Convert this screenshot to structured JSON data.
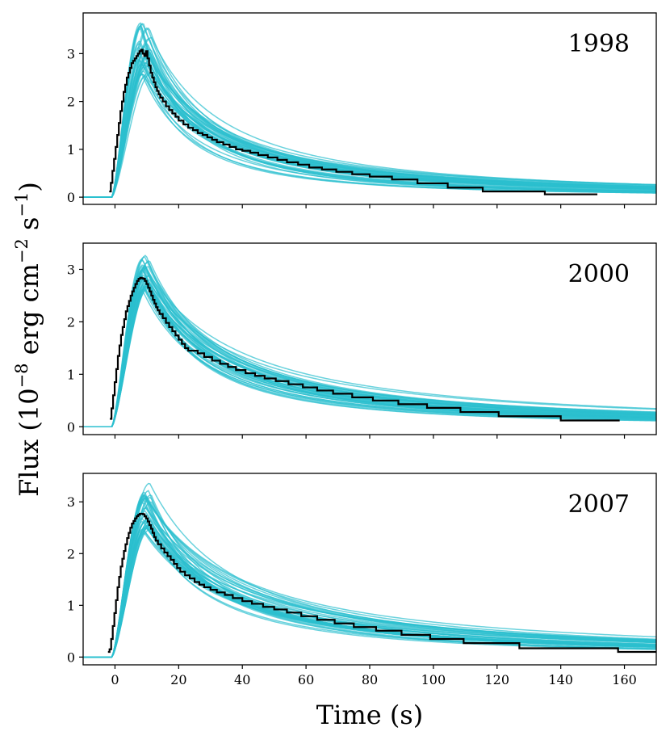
{
  "chart_data": {
    "type": "line",
    "xlabel": "Time (s)",
    "ylabel": {
      "prefix": "Flux (10",
      "exp1": "−8",
      "mid": " erg cm",
      "exp2": "−2",
      "mid2": " s",
      "exp3": "−1",
      "suffix": ")"
    },
    "xlim": [
      -10,
      170
    ],
    "xticks": [
      0,
      20,
      40,
      60,
      80,
      100,
      120,
      140,
      160
    ],
    "colors": {
      "model": "#2bbfcf",
      "observed": "#000000"
    },
    "panels": [
      {
        "label": "1998",
        "ylim": [
          -0.15,
          3.85
        ],
        "yticks": [
          0,
          1,
          2,
          3
        ],
        "model_curves": {
          "count": 40,
          "onset": -1,
          "peak_time": [
            7.5,
            11.5
          ],
          "peak_flux": [
            2.5,
            3.65
          ],
          "tail_scale": [
            22,
            38
          ],
          "tail_index": [
            1.35,
            1.8
          ]
        },
        "observed_steps": [
          [
            -1.8,
            0.12
          ],
          [
            -1.3,
            0.3
          ],
          [
            -0.8,
            0.55
          ],
          [
            -0.3,
            0.8
          ],
          [
            0.2,
            1.05
          ],
          [
            0.7,
            1.3
          ],
          [
            1.2,
            1.55
          ],
          [
            1.7,
            1.8
          ],
          [
            2.2,
            2.0
          ],
          [
            2.7,
            2.2
          ],
          [
            3.2,
            2.35
          ],
          [
            3.7,
            2.5
          ],
          [
            4.2,
            2.6
          ],
          [
            4.7,
            2.7
          ],
          [
            5.2,
            2.8
          ],
          [
            5.7,
            2.85
          ],
          [
            6.2,
            2.9
          ],
          [
            6.7,
            2.95
          ],
          [
            7.2,
            3.0
          ],
          [
            7.7,
            3.05
          ],
          [
            8.2,
            3.08
          ],
          [
            8.7,
            3.0
          ],
          [
            9.2,
            2.95
          ],
          [
            9.7,
            3.05
          ],
          [
            10.2,
            2.9
          ],
          [
            10.7,
            2.75
          ],
          [
            11.2,
            2.6
          ],
          [
            11.7,
            2.5
          ],
          [
            12.2,
            2.4
          ],
          [
            12.7,
            2.3
          ],
          [
            13.2,
            2.22
          ],
          [
            13.7,
            2.15
          ],
          [
            14.2,
            2.08
          ],
          [
            15.0,
            2.0
          ],
          [
            16.0,
            1.9
          ],
          [
            17.0,
            1.82
          ],
          [
            18.0,
            1.75
          ],
          [
            19.0,
            1.68
          ],
          [
            20.0,
            1.6
          ],
          [
            21.5,
            1.52
          ],
          [
            23.0,
            1.45
          ],
          [
            24.5,
            1.4
          ],
          [
            26.0,
            1.34
          ],
          [
            27.5,
            1.3
          ],
          [
            29.0,
            1.25
          ],
          [
            30.5,
            1.2
          ],
          [
            32.0,
            1.15
          ],
          [
            34.0,
            1.1
          ],
          [
            36.0,
            1.05
          ],
          [
            38.0,
            1.0
          ],
          [
            40.0,
            0.97
          ],
          [
            42.5,
            0.93
          ],
          [
            45.0,
            0.88
          ],
          [
            48.0,
            0.83
          ],
          [
            51.0,
            0.78
          ],
          [
            54.0,
            0.73
          ],
          [
            57.5,
            0.68
          ],
          [
            61.0,
            0.62
          ],
          [
            65.0,
            0.58
          ],
          [
            69.5,
            0.53
          ],
          [
            74.5,
            0.48
          ],
          [
            80.0,
            0.43
          ],
          [
            87.0,
            0.37
          ],
          [
            95.0,
            0.29
          ],
          [
            104.5,
            0.2
          ],
          [
            115.5,
            0.12
          ],
          [
            135.0,
            0.06
          ],
          [
            151.5,
            0.06
          ]
        ]
      },
      {
        "label": "2000",
        "ylim": [
          -0.15,
          3.5
        ],
        "yticks": [
          0,
          1,
          2,
          3
        ],
        "model_curves": {
          "count": 40,
          "onset": -1,
          "peak_time": [
            8.5,
            11
          ],
          "peak_flux": [
            2.6,
            3.3
          ],
          "tail_scale": [
            25,
            42
          ],
          "tail_index": [
            1.3,
            1.7
          ]
        },
        "observed_steps": [
          [
            -1.6,
            0.15
          ],
          [
            -1.1,
            0.35
          ],
          [
            -0.6,
            0.6
          ],
          [
            -0.1,
            0.85
          ],
          [
            0.4,
            1.1
          ],
          [
            0.9,
            1.35
          ],
          [
            1.4,
            1.55
          ],
          [
            1.9,
            1.75
          ],
          [
            2.4,
            1.9
          ],
          [
            2.9,
            2.05
          ],
          [
            3.4,
            2.2
          ],
          [
            3.9,
            2.3
          ],
          [
            4.4,
            2.4
          ],
          [
            4.9,
            2.5
          ],
          [
            5.4,
            2.58
          ],
          [
            5.9,
            2.65
          ],
          [
            6.4,
            2.72
          ],
          [
            6.9,
            2.78
          ],
          [
            7.4,
            2.82
          ],
          [
            7.9,
            2.84
          ],
          [
            8.4,
            2.83
          ],
          [
            8.9,
            2.82
          ],
          [
            9.4,
            2.78
          ],
          [
            9.9,
            2.72
          ],
          [
            10.4,
            2.65
          ],
          [
            10.9,
            2.58
          ],
          [
            11.4,
            2.5
          ],
          [
            11.9,
            2.42
          ],
          [
            12.4,
            2.35
          ],
          [
            12.9,
            2.28
          ],
          [
            13.4,
            2.22
          ],
          [
            14.0,
            2.15
          ],
          [
            15.0,
            2.07
          ],
          [
            16.0,
            1.98
          ],
          [
            17.0,
            1.9
          ],
          [
            18.0,
            1.82
          ],
          [
            19.0,
            1.74
          ],
          [
            20.0,
            1.66
          ],
          [
            21.0,
            1.58
          ],
          [
            22.0,
            1.5
          ],
          [
            23.0,
            1.45
          ],
          [
            26.0,
            1.4
          ],
          [
            28.0,
            1.33
          ],
          [
            30.5,
            1.26
          ],
          [
            33.0,
            1.2
          ],
          [
            35.5,
            1.14
          ],
          [
            38.0,
            1.08
          ],
          [
            41.0,
            1.02
          ],
          [
            44.0,
            0.97
          ],
          [
            47.0,
            0.92
          ],
          [
            50.5,
            0.87
          ],
          [
            54.5,
            0.81
          ],
          [
            59.0,
            0.75
          ],
          [
            63.5,
            0.69
          ],
          [
            68.5,
            0.63
          ],
          [
            74.5,
            0.56
          ],
          [
            81.0,
            0.5
          ],
          [
            89.0,
            0.43
          ],
          [
            98.0,
            0.36
          ],
          [
            108.5,
            0.28
          ],
          [
            120.5,
            0.2
          ],
          [
            140.0,
            0.12
          ],
          [
            158.5,
            0.12
          ]
        ]
      },
      {
        "label": "2007",
        "ylim": [
          -0.15,
          3.55
        ],
        "yticks": [
          0,
          1,
          2,
          3
        ],
        "model_curves": {
          "count": 40,
          "onset": -1,
          "peak_time": [
            8.5,
            11.5
          ],
          "peak_flux": [
            2.25,
            3.4
          ],
          "tail_scale": [
            26,
            46
          ],
          "tail_index": [
            1.25,
            1.65
          ]
        },
        "observed_steps": [
          [
            -2.2,
            0.1
          ],
          [
            -1.7,
            0.15
          ],
          [
            -1.2,
            0.35
          ],
          [
            -0.7,
            0.6
          ],
          [
            -0.2,
            0.85
          ],
          [
            0.3,
            1.1
          ],
          [
            0.8,
            1.35
          ],
          [
            1.3,
            1.55
          ],
          [
            1.8,
            1.75
          ],
          [
            2.3,
            1.9
          ],
          [
            2.8,
            2.05
          ],
          [
            3.3,
            2.18
          ],
          [
            3.8,
            2.3
          ],
          [
            4.3,
            2.4
          ],
          [
            4.8,
            2.5
          ],
          [
            5.3,
            2.58
          ],
          [
            5.8,
            2.63
          ],
          [
            6.3,
            2.68
          ],
          [
            6.8,
            2.72
          ],
          [
            7.3,
            2.75
          ],
          [
            7.8,
            2.77
          ],
          [
            8.3,
            2.77
          ],
          [
            8.8,
            2.76
          ],
          [
            9.3,
            2.72
          ],
          [
            9.8,
            2.68
          ],
          [
            10.3,
            2.62
          ],
          [
            10.8,
            2.55
          ],
          [
            11.3,
            2.48
          ],
          [
            11.8,
            2.4
          ],
          [
            12.3,
            2.32
          ],
          [
            12.8,
            2.25
          ],
          [
            13.5,
            2.18
          ],
          [
            14.5,
            2.1
          ],
          [
            15.5,
            2.02
          ],
          [
            16.5,
            1.95
          ],
          [
            17.5,
            1.88
          ],
          [
            18.5,
            1.8
          ],
          [
            19.5,
            1.72
          ],
          [
            20.5,
            1.65
          ],
          [
            22.0,
            1.58
          ],
          [
            23.5,
            1.52
          ],
          [
            25.0,
            1.45
          ],
          [
            26.5,
            1.4
          ],
          [
            28.0,
            1.35
          ],
          [
            30.0,
            1.3
          ],
          [
            32.0,
            1.25
          ],
          [
            34.5,
            1.2
          ],
          [
            37.0,
            1.14
          ],
          [
            40.0,
            1.08
          ],
          [
            43.0,
            1.03
          ],
          [
            46.5,
            0.97
          ],
          [
            50.0,
            0.92
          ],
          [
            54.0,
            0.86
          ],
          [
            58.5,
            0.79
          ],
          [
            63.5,
            0.72
          ],
          [
            69.0,
            0.65
          ],
          [
            75.0,
            0.58
          ],
          [
            82.0,
            0.51
          ],
          [
            90.0,
            0.43
          ],
          [
            99.0,
            0.35
          ],
          [
            109.5,
            0.27
          ],
          [
            127.0,
            0.17
          ],
          [
            158.0,
            0.1
          ],
          [
            170.0,
            0.1
          ]
        ]
      }
    ]
  }
}
